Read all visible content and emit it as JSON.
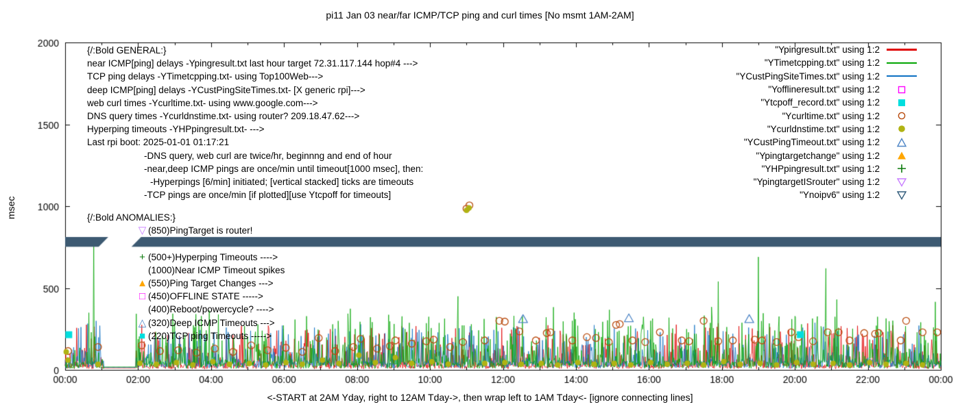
{
  "chart_data": {
    "type": "line",
    "title": "pi11 Jan 03  near/far ICMP/TCP ping and curl times [No msmt 1AM-2AM]",
    "xlabel": "<-START at 2AM Yday, right to 12AM Tday->, then wrap left to 1AM Tday<- [ignore connecting lines]",
    "ylabel": "msec",
    "ylim": [
      0,
      2000
    ],
    "xlim_hours": [
      0,
      24
    ],
    "grid": false,
    "legend_position": "top-right",
    "y_ticks": [
      0,
      500,
      1000,
      1500,
      2000
    ],
    "x_ticks": [
      {
        "h": 0,
        "label": "00:00"
      },
      {
        "h": 2,
        "label": "02:00"
      },
      {
        "h": 4,
        "label": "04:00"
      },
      {
        "h": 6,
        "label": "06:00"
      },
      {
        "h": 8,
        "label": "08:00"
      },
      {
        "h": 10,
        "label": "10:00"
      },
      {
        "h": 12,
        "label": "12:00"
      },
      {
        "h": 14,
        "label": "14:00"
      },
      {
        "h": 16,
        "label": "16:00"
      },
      {
        "h": 18,
        "label": "18:00"
      },
      {
        "h": 20,
        "label": "20:00"
      },
      {
        "h": 22,
        "label": "22:00"
      },
      {
        "h": 24,
        "label": "00:00"
      }
    ],
    "band": {
      "name": "no-ipv6-dense-band",
      "y": [
        752,
        812
      ],
      "gap": [
        1.05,
        1.95
      ],
      "color": "#3d5a72",
      "slant": 14
    },
    "noise_series": [
      {
        "name": "Ypingresult.txt",
        "color": "#e00000",
        "seed": 11,
        "floor": 6,
        "jitter": 28,
        "pow": 7,
        "amp": 260,
        "spike_prob": 0.015,
        "spike_amp": 120,
        "gap_value": 12,
        "spikes": [
          [
            5.3,
            160
          ],
          [
            8.35,
            210
          ],
          [
            9.15,
            200
          ],
          [
            10.6,
            195
          ],
          [
            14.2,
            150
          ],
          [
            23.55,
            150
          ]
        ]
      },
      {
        "name": "YCustPingSiteTimes.txt",
        "color": "#0b6fc2",
        "seed": 33,
        "floor": 10,
        "jitter": 45,
        "pow": 7,
        "amp": 230,
        "spike_prob": 0.015,
        "spike_amp": 130,
        "gap_value": 15,
        "spikes": [
          [
            3.3,
            140
          ],
          [
            6.8,
            150
          ],
          [
            10.3,
            140
          ],
          [
            13.3,
            130
          ],
          [
            17.0,
            150
          ],
          [
            20.4,
            140
          ]
        ]
      },
      {
        "name": "YTimetcpping.txt",
        "color": "#00a400",
        "seed": 22,
        "floor": 8,
        "jitter": 40,
        "pow": 6,
        "amp": 320,
        "spike_prob": 0.02,
        "spike_amp": 180,
        "gap_value": 18,
        "spikes": [
          [
            0.72,
            230
          ],
          [
            0.78,
            795
          ],
          [
            3.55,
            260
          ],
          [
            4.3,
            180
          ],
          [
            7.95,
            250
          ],
          [
            9.35,
            230
          ],
          [
            12.3,
            330
          ],
          [
            13.9,
            300
          ],
          [
            15.5,
            270
          ],
          [
            16.05,
            300
          ],
          [
            17.3,
            220
          ],
          [
            17.9,
            540
          ],
          [
            19.0,
            690
          ],
          [
            19.55,
            260
          ],
          [
            20.85,
            620
          ],
          [
            21.15,
            430
          ],
          [
            22.6,
            220
          ],
          [
            23.35,
            230
          ],
          [
            23.8,
            260
          ]
        ]
      }
    ],
    "point_series": [
      {
        "name": "Ycurltime.txt",
        "marker": "circle-open",
        "color": "#b84a0c",
        "points": [
          [
            0.08,
            115
          ],
          [
            0.9,
            140
          ],
          [
            2.1,
            150
          ],
          [
            2.6,
            115
          ],
          [
            3.1,
            120
          ],
          [
            3.6,
            105
          ],
          [
            4.1,
            130
          ],
          [
            4.6,
            110
          ],
          [
            5.1,
            150
          ],
          [
            5.55,
            120
          ],
          [
            6.05,
            135
          ],
          [
            6.5,
            110
          ],
          [
            6.95,
            195
          ],
          [
            7.4,
            115
          ],
          [
            7.9,
            140
          ],
          [
            8.1,
            190
          ],
          [
            8.55,
            130
          ],
          [
            8.9,
            145
          ],
          [
            9.05,
            180
          ],
          [
            9.5,
            160
          ],
          [
            9.9,
            175
          ],
          [
            10.1,
            185
          ],
          [
            10.55,
            140
          ],
          [
            10.9,
            170
          ],
          [
            11.0,
            985
          ],
          [
            11.08,
            1005
          ],
          [
            11.5,
            180
          ],
          [
            11.9,
            300
          ],
          [
            12.05,
            295
          ],
          [
            12.45,
            235
          ],
          [
            12.9,
            180
          ],
          [
            13.2,
            225
          ],
          [
            13.3,
            230
          ],
          [
            13.9,
            180
          ],
          [
            14.3,
            200
          ],
          [
            14.55,
            195
          ],
          [
            14.9,
            170
          ],
          [
            15.1,
            275
          ],
          [
            15.2,
            280
          ],
          [
            15.55,
            180
          ],
          [
            15.9,
            170
          ],
          [
            16.3,
            230
          ],
          [
            16.9,
            180
          ],
          [
            17.1,
            175
          ],
          [
            17.5,
            300
          ],
          [
            17.9,
            175
          ],
          [
            18.3,
            180
          ],
          [
            18.9,
            185
          ],
          [
            19.1,
            180
          ],
          [
            19.5,
            170
          ],
          [
            19.9,
            230
          ],
          [
            20.1,
            200
          ],
          [
            20.5,
            175
          ],
          [
            20.9,
            230
          ],
          [
            21.2,
            230
          ],
          [
            21.5,
            180
          ],
          [
            21.9,
            225
          ],
          [
            22.2,
            220
          ],
          [
            22.3,
            225
          ],
          [
            22.9,
            180
          ],
          [
            23.05,
            300
          ],
          [
            23.5,
            230
          ],
          [
            23.9,
            230
          ]
        ]
      },
      {
        "name": "Ycurldnstime.txt",
        "marker": "circle-filled",
        "color": "#b0b313",
        "points": [
          [
            0.03,
            110
          ],
          [
            0.08,
            60
          ],
          [
            0.9,
            35
          ],
          [
            2.05,
            40
          ],
          [
            2.5,
            35
          ],
          [
            3.05,
            45
          ],
          [
            3.5,
            30
          ],
          [
            4.05,
            50
          ],
          [
            4.5,
            35
          ],
          [
            5.05,
            40
          ],
          [
            5.5,
            30
          ],
          [
            6.05,
            45
          ],
          [
            6.5,
            35
          ],
          [
            7.05,
            60
          ],
          [
            7.5,
            40
          ],
          [
            8.05,
            90
          ],
          [
            8.5,
            45
          ],
          [
            9.05,
            75
          ],
          [
            9.5,
            40
          ],
          [
            10.05,
            50
          ],
          [
            10.5,
            35
          ],
          [
            11.0,
            975
          ],
          [
            11.07,
            990
          ],
          [
            11.5,
            40
          ],
          [
            12.05,
            45
          ],
          [
            12.5,
            35
          ],
          [
            13.05,
            40
          ],
          [
            13.5,
            30
          ],
          [
            14.05,
            45
          ],
          [
            14.5,
            35
          ],
          [
            15.05,
            40
          ],
          [
            15.5,
            30
          ],
          [
            16.05,
            45
          ],
          [
            16.5,
            35
          ],
          [
            17.05,
            40
          ],
          [
            17.5,
            30
          ],
          [
            18.05,
            50
          ],
          [
            18.5,
            35
          ],
          [
            19.05,
            40
          ],
          [
            19.5,
            30
          ],
          [
            20.05,
            45
          ],
          [
            20.5,
            35
          ],
          [
            21.05,
            40
          ],
          [
            21.5,
            30
          ],
          [
            22.05,
            45
          ],
          [
            22.5,
            35
          ],
          [
            23.05,
            40
          ],
          [
            23.5,
            30
          ]
        ]
      },
      {
        "name": "YCustPingTimeout.txt",
        "marker": "triangle-open",
        "color": "#4f86c6",
        "points": [
          [
            12.55,
            310
          ],
          [
            15.45,
            315
          ],
          [
            18.75,
            310
          ]
        ]
      },
      {
        "name": "Ytcpoff_record.txt",
        "marker": "square-filled",
        "color": "#00dede",
        "points": [
          [
            0.1,
            215
          ],
          [
            20.15,
            215
          ]
        ]
      }
    ],
    "legend": [
      {
        "label": "\"Ypingresult.txt\" using 1:2",
        "type": "line",
        "color": "#e00000"
      },
      {
        "label": "\"YTimetcpping.txt\" using 1:2",
        "type": "line",
        "color": "#00a400"
      },
      {
        "label": "\"YCustPingSiteTimes.txt\" using 1:2",
        "type": "line",
        "color": "#0b6fc2"
      },
      {
        "label": "\"Yofflineresult.txt\" using 1:2",
        "type": "square-open",
        "color": "#ff00ff"
      },
      {
        "label": "\"Ytcpoff_record.txt\" using 1:2",
        "type": "square-filled",
        "color": "#00dede"
      },
      {
        "label": "\"Ycurltime.txt\" using 1:2",
        "type": "circle-open",
        "color": "#b84a0c"
      },
      {
        "label": "\"Ycurldnstime.txt\" using 1:2",
        "type": "circle-filled",
        "color": "#b0b313"
      },
      {
        "label": "\"YCustPingTimeout.txt\" using 1:2",
        "type": "triangle-open",
        "color": "#4f86c6"
      },
      {
        "label": "\"Ypingtargetchange\" using 1:2",
        "type": "triangle-filled",
        "color": "#ffa600"
      },
      {
        "label": "\"YHPpingresult.txt\" using 1:2",
        "type": "plus",
        "color": "#0b7a0b"
      },
      {
        "label": "\"YpingtargetISrouter\" using 1:2",
        "type": "nabla-open",
        "color": "#c77dff"
      },
      {
        "label": "\"Ynoipv6\" using 1:2",
        "type": "nabla-open",
        "color": "#2f5a7a"
      }
    ]
  },
  "annotations": {
    "general": [
      {
        "text": "{/:Bold GENERAL:}",
        "indent": 0
      },
      {
        "text": "near ICMP[ping] delays -Ypingresult.txt last hour target 72.31.117.144 hop#4 --->",
        "indent": 0
      },
      {
        "text": "TCP ping delays -YTimetcpping.txt- using Top100Web--->",
        "indent": 0
      },
      {
        "text": "deep ICMP[ping] delays -YCustPingSiteTimes.txt- [X generic rpi]--->",
        "indent": 0
      },
      {
        "text": "web curl times -Ycurltime.txt- using www.google.com--->",
        "indent": 0
      },
      {
        "text": "DNS query times -Ycurldnstime.txt- using router? 209.18.47.62--->",
        "indent": 0
      },
      {
        "text": "Hyperping timeouts -YHPpingresult.txt- --->",
        "indent": 0
      },
      {
        "text": "Last rpi boot: 2025-01-01 01:17:21",
        "indent": 0
      },
      {
        "text": "-DNS query, web curl are twice/hr, beginnng and end of hour",
        "indent": 83
      },
      {
        "text": "-near,deep ICMP pings are once/min until timeout[1000 msec], then:",
        "indent": 83
      },
      {
        "text": "-Hyperpings [6/min] initiated; [vertical stacked] ticks are timeouts",
        "indent": 92
      },
      {
        "text": "-TCP pings are once/min [if plotted][use Ytcpoff for timeouts]",
        "indent": 83
      }
    ],
    "anomalies_title": "{/:Bold ANOMALIES:}",
    "anomalies": [
      {
        "marker": "▽",
        "color": "#c77dff",
        "text": "(850)PingTarget is router!"
      },
      {
        "marker": "",
        "color": "",
        "text": ""
      },
      {
        "marker": "+",
        "color": "#0b7a0b",
        "text": "(500+)Hyperping Timeouts ---->"
      },
      {
        "marker": "",
        "color": "",
        "text": "(1000)Near ICMP Timeout spikes"
      },
      {
        "marker": "▲",
        "color": "#ffa600",
        "text": "(550)Ping Target Changes --->"
      },
      {
        "marker": "□",
        "color": "#ff00ff",
        "text": "(450)OFFLINE STATE ----->"
      },
      {
        "marker": "",
        "color": "",
        "text": "(400)Reboot/powercycle? ---->"
      },
      {
        "marker": "△",
        "color": "#4f86c6",
        "text": "(320)Deep ICMP Timeouts --->"
      },
      {
        "marker": "■",
        "color": "#00dede",
        "text": "(220)TCP ping Timeouts ----->"
      }
    ]
  }
}
